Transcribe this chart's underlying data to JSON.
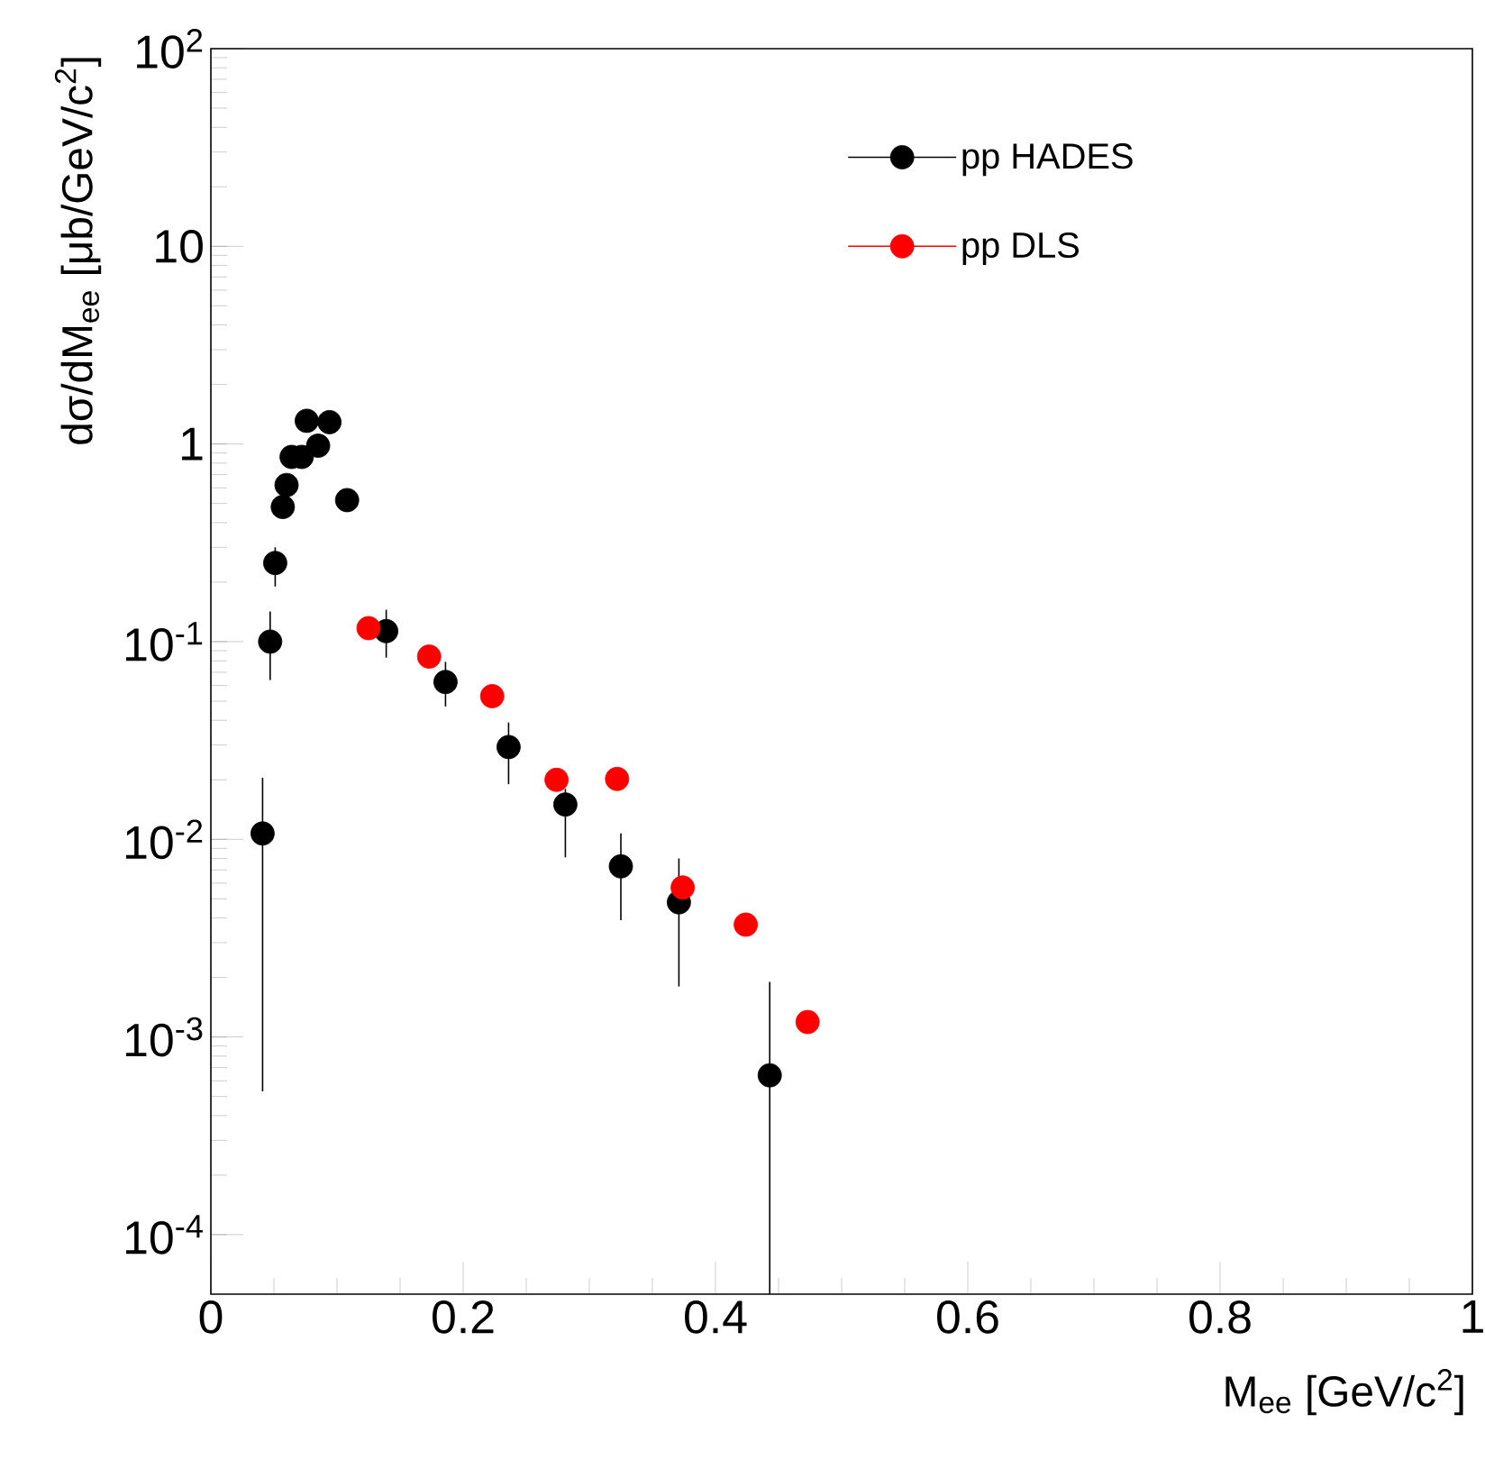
{
  "chart_data": {
    "type": "scatter",
    "xlabel": "M$_{ee}$ [GeV/c$^{2}$]",
    "ylabel": "dσ/dM$_{ee}$ [μb/GeV/c$^{2}$]",
    "log": "y",
    "marker": "circle",
    "legend": "top right",
    "xlim": [
      0,
      1
    ],
    "ylim": [
      5e-05,
      100
    ],
    "xticks": [
      0,
      0.2,
      0.4,
      0.6,
      0.8,
      1
    ],
    "yticks": [
      {
        "value": 0.0001,
        "label": "10$^{-4}$"
      },
      {
        "value": 0.001,
        "label": "10$^{-3}$"
      },
      {
        "value": 0.01,
        "label": "10$^{-2}$"
      },
      {
        "value": 0.1,
        "label": "10$^{-1}$"
      },
      1,
      10,
      {
        "value": 100,
        "label": "10$^{2}$"
      }
    ],
    "series": [
      {
        "name": "pp HADES",
        "color": "#000000",
        "x": [
          0.041,
          0.047,
          0.051,
          0.057,
          0.06,
          0.064,
          0.072,
          0.076,
          0.085,
          0.094,
          0.108,
          0.139,
          0.186,
          0.236,
          0.281,
          0.325,
          0.371,
          0.443
        ],
        "values": [
          0.0107,
          0.1,
          0.25,
          0.48,
          0.62,
          0.86,
          0.86,
          1.31,
          0.98,
          1.29,
          0.52,
          0.113,
          0.0625,
          0.0293,
          0.015,
          0.0073,
          0.0048,
          0.00064
        ],
        "errors": [
          [
            0.00053,
            0.0205
          ],
          [
            0.064,
            0.142
          ],
          [
            0.19,
            0.3
          ],
          [
            0.43,
            0.55
          ],
          null,
          null,
          null,
          null,
          null,
          null,
          [
            0.46,
            0.58
          ],
          [
            0.083,
            0.145
          ],
          [
            0.047,
            0.079
          ],
          [
            0.019,
            0.039
          ],
          [
            0.0081,
            0.018
          ],
          [
            0.0039,
            0.0107
          ],
          [
            0.0018,
            0.008
          ],
          [
            5e-05,
            0.0019
          ]
        ]
      },
      {
        "name": "pp DLS",
        "color": "#ff0000",
        "x": [
          0.125,
          0.173,
          0.223,
          0.274,
          0.322,
          0.374,
          0.424,
          0.473
        ],
        "values": [
          0.117,
          0.084,
          0.053,
          0.02,
          0.0202,
          0.0057,
          0.0037,
          0.00119
        ]
      }
    ]
  }
}
